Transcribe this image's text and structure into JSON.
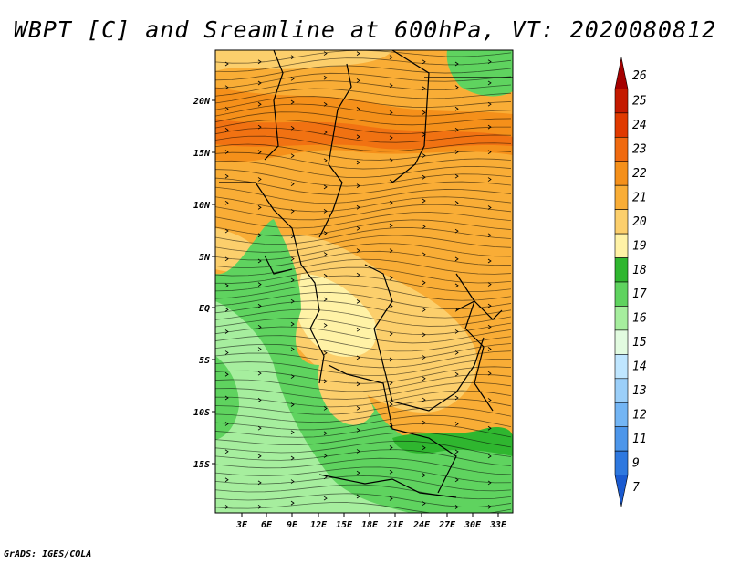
{
  "title": "WBPT [C] and Sreamline at 600hPa, VT: 2020080812",
  "footer": "GrADS: IGES/COLA",
  "map": {
    "lat_labels": [
      "20N",
      "15N",
      "10N",
      "5N",
      "EQ",
      "5S",
      "10S",
      "15S"
    ],
    "lon_labels": [
      "3E",
      "6E",
      "9E",
      "12E",
      "15E",
      "18E",
      "21E",
      "24E",
      "27E",
      "30E",
      "33E"
    ]
  },
  "colorbar": {
    "levels": [
      "26",
      "25",
      "24",
      "23",
      "22",
      "21",
      "20",
      "19",
      "18",
      "17",
      "16",
      "15",
      "14",
      "13",
      "12",
      "11",
      "9",
      "7"
    ],
    "colors": [
      "#a50000",
      "#c41a00",
      "#e03a00",
      "#f06a10",
      "#f5901a",
      "#f9ad36",
      "#fccf6c",
      "#fff2a6",
      "#2fb62f",
      "#5fd35f",
      "#a6ee9e",
      "#e2fbe0",
      "#bfe6ff",
      "#9bcff9",
      "#73b5f4",
      "#4d96ea",
      "#2e78df",
      "#1a5ad0"
    ]
  }
}
